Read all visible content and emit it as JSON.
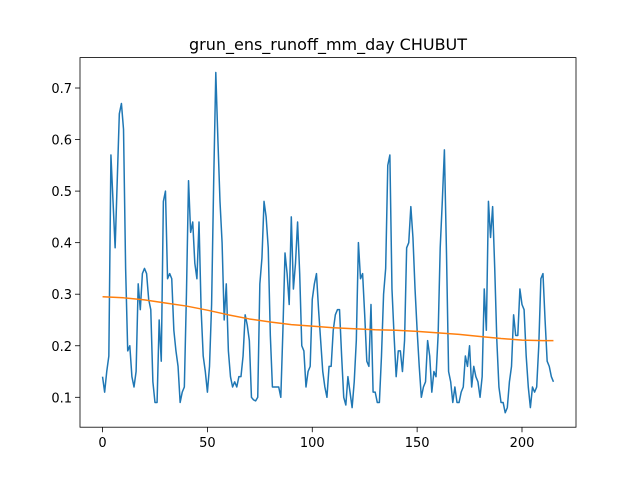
{
  "chart_data": {
    "type": "line",
    "title": "grun_ens_runoff_mm_day CHUBUT",
    "xlim": [
      -10.75,
      225.75
    ],
    "xticks": [
      0,
      50,
      100,
      150,
      200
    ],
    "ylim": [
      0.042,
      0.759
    ],
    "yticks": [
      0.1,
      0.2,
      0.3,
      0.4,
      0.5,
      0.6,
      0.7
    ],
    "series": [
      {
        "color": "#1f77b4",
        "x": [
          0,
          1,
          2,
          3,
          4,
          5,
          6,
          7,
          8,
          9,
          10,
          11,
          12,
          13,
          14,
          15,
          16,
          17,
          18,
          19,
          20,
          21,
          22,
          23,
          24,
          25,
          26,
          27,
          28,
          29,
          30,
          31,
          32,
          33,
          34,
          35,
          36,
          37,
          38,
          39,
          40,
          41,
          42,
          43,
          44,
          45,
          46,
          47,
          48,
          49,
          50,
          51,
          52,
          53,
          54,
          55,
          56,
          57,
          58,
          59,
          60,
          61,
          62,
          63,
          64,
          65,
          66,
          67,
          68,
          69,
          70,
          71,
          72,
          73,
          74,
          75,
          76,
          77,
          78,
          79,
          80,
          81,
          82,
          83,
          84,
          85,
          86,
          87,
          88,
          89,
          90,
          91,
          92,
          93,
          94,
          95,
          96,
          97,
          98,
          99,
          100,
          101,
          102,
          103,
          104,
          105,
          106,
          107,
          108,
          109,
          110,
          111,
          112,
          113,
          114,
          115,
          116,
          117,
          118,
          119,
          120,
          121,
          122,
          123,
          124,
          125,
          126,
          127,
          128,
          129,
          130,
          131,
          132,
          133,
          134,
          135,
          136,
          137,
          138,
          139,
          140,
          141,
          142,
          143,
          144,
          145,
          146,
          147,
          148,
          149,
          150,
          151,
          152,
          153,
          154,
          155,
          156,
          157,
          158,
          159,
          160,
          161,
          162,
          163,
          164,
          165,
          166,
          167,
          168,
          169,
          170,
          171,
          172,
          173,
          174,
          175,
          176,
          177,
          178,
          179,
          180,
          181,
          182,
          183,
          184,
          185,
          186,
          187,
          188,
          189,
          190,
          191,
          192,
          193,
          194,
          195,
          196,
          197,
          198,
          199,
          200,
          201,
          202,
          203,
          204,
          205,
          206,
          207,
          208,
          209,
          210,
          211,
          212,
          213,
          214,
          215
        ],
        "values": [
          0.14,
          0.11,
          0.15,
          0.18,
          0.57,
          0.48,
          0.39,
          0.52,
          0.65,
          0.67,
          0.62,
          0.35,
          0.19,
          0.2,
          0.14,
          0.12,
          0.15,
          0.32,
          0.27,
          0.34,
          0.35,
          0.34,
          0.29,
          0.27,
          0.13,
          0.09,
          0.09,
          0.25,
          0.17,
          0.48,
          0.5,
          0.33,
          0.34,
          0.33,
          0.23,
          0.19,
          0.16,
          0.09,
          0.11,
          0.12,
          0.3,
          0.52,
          0.42,
          0.44,
          0.36,
          0.33,
          0.44,
          0.27,
          0.18,
          0.15,
          0.11,
          0.16,
          0.28,
          0.52,
          0.73,
          0.6,
          0.48,
          0.4,
          0.25,
          0.32,
          0.19,
          0.14,
          0.12,
          0.13,
          0.12,
          0.14,
          0.14,
          0.18,
          0.26,
          0.24,
          0.21,
          0.1,
          0.095,
          0.093,
          0.1,
          0.32,
          0.37,
          0.48,
          0.45,
          0.39,
          0.22,
          0.12,
          0.12,
          0.12,
          0.12,
          0.1,
          0.23,
          0.38,
          0.34,
          0.28,
          0.45,
          0.31,
          0.36,
          0.44,
          0.34,
          0.2,
          0.19,
          0.12,
          0.15,
          0.16,
          0.29,
          0.32,
          0.34,
          0.27,
          0.21,
          0.15,
          0.12,
          0.1,
          0.16,
          0.16,
          0.23,
          0.26,
          0.27,
          0.27,
          0.18,
          0.1,
          0.085,
          0.14,
          0.11,
          0.08,
          0.13,
          0.21,
          0.4,
          0.33,
          0.34,
          0.26,
          0.17,
          0.16,
          0.28,
          0.11,
          0.11,
          0.09,
          0.09,
          0.18,
          0.3,
          0.35,
          0.55,
          0.57,
          0.31,
          0.22,
          0.14,
          0.19,
          0.19,
          0.15,
          0.21,
          0.39,
          0.4,
          0.47,
          0.41,
          0.31,
          0.23,
          0.16,
          0.1,
          0.12,
          0.13,
          0.21,
          0.18,
          0.11,
          0.15,
          0.14,
          0.22,
          0.39,
          0.48,
          0.58,
          0.38,
          0.15,
          0.13,
          0.09,
          0.12,
          0.09,
          0.09,
          0.11,
          0.12,
          0.18,
          0.16,
          0.2,
          0.12,
          0.16,
          0.14,
          0.13,
          0.1,
          0.14,
          0.31,
          0.23,
          0.48,
          0.41,
          0.47,
          0.35,
          0.21,
          0.12,
          0.09,
          0.09,
          0.07,
          0.08,
          0.13,
          0.16,
          0.26,
          0.22,
          0.22,
          0.31,
          0.28,
          0.27,
          0.18,
          0.12,
          0.08,
          0.12,
          0.11,
          0.12,
          0.2,
          0.33,
          0.34,
          0.25,
          0.17,
          0.16,
          0.14,
          0.13
        ]
      },
      {
        "color": "#ff7f0e",
        "x": [
          0,
          10,
          20,
          30,
          40,
          50,
          60,
          70,
          80,
          90,
          100,
          110,
          120,
          130,
          140,
          150,
          160,
          170,
          180,
          190,
          200,
          210,
          215
        ],
        "values": [
          0.295,
          0.293,
          0.289,
          0.283,
          0.277,
          0.269,
          0.26,
          0.252,
          0.246,
          0.241,
          0.238,
          0.235,
          0.233,
          0.231,
          0.23,
          0.228,
          0.225,
          0.222,
          0.218,
          0.214,
          0.211,
          0.21,
          0.21
        ]
      }
    ]
  }
}
